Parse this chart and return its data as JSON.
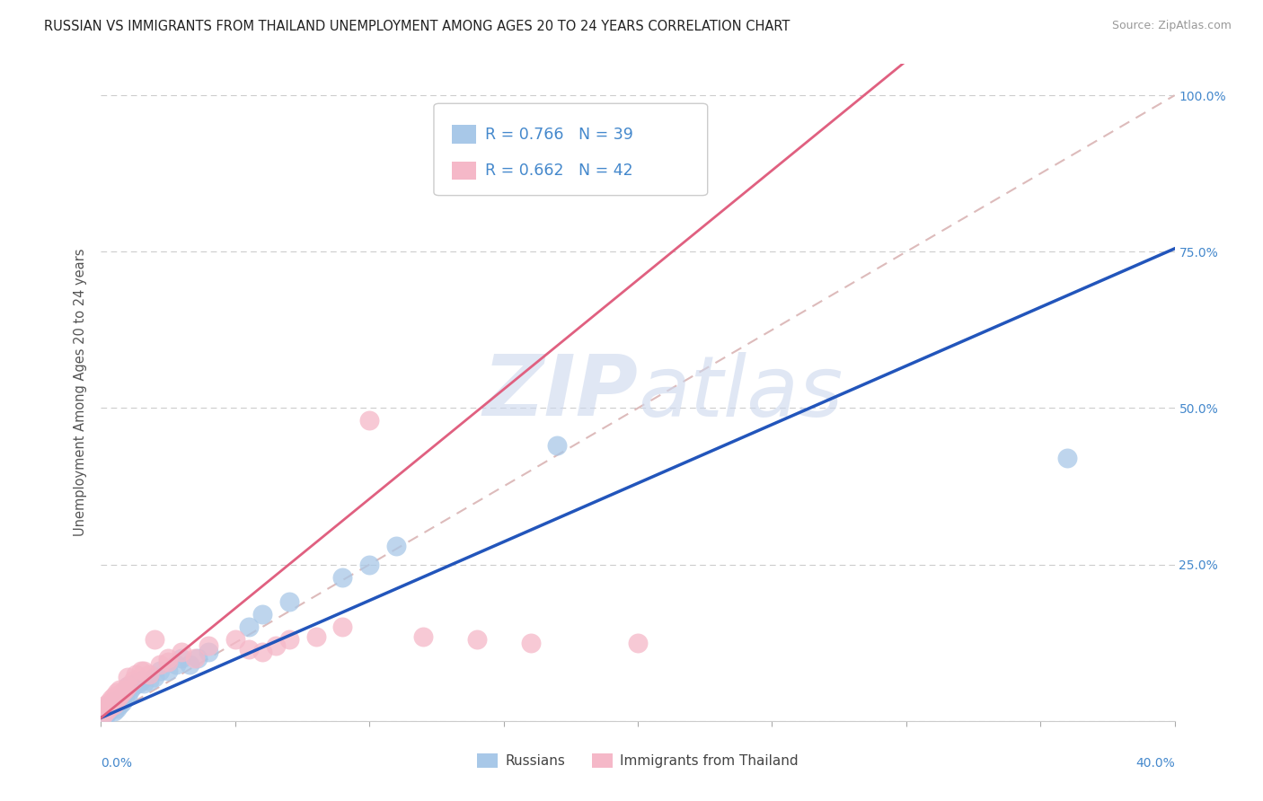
{
  "title": "RUSSIAN VS IMMIGRANTS FROM THAILAND UNEMPLOYMENT AMONG AGES 20 TO 24 YEARS CORRELATION CHART",
  "source": "Source: ZipAtlas.com",
  "ylabel": "Unemployment Among Ages 20 to 24 years",
  "xlim": [
    0.0,
    0.4
  ],
  "ylim": [
    0.0,
    1.05
  ],
  "russian_R": 0.766,
  "russian_N": 39,
  "thailand_R": 0.662,
  "thailand_N": 42,
  "russian_color": "#a8c8e8",
  "thailand_color": "#f5b8c8",
  "russian_line_color": "#2255bb",
  "thailand_line_color": "#e06080",
  "diag_line_color": "#ddbbbb",
  "watermark_color": "#ccd8ee",
  "background_color": "#ffffff",
  "ytick_color": "#4488cc",
  "russian_scatter_x": [
    0.001,
    0.002,
    0.003,
    0.003,
    0.004,
    0.004,
    0.005,
    0.005,
    0.006,
    0.006,
    0.007,
    0.008,
    0.008,
    0.009,
    0.01,
    0.01,
    0.011,
    0.012,
    0.013,
    0.014,
    0.015,
    0.016,
    0.018,
    0.02,
    0.022,
    0.025,
    0.028,
    0.03,
    0.033,
    0.036,
    0.04,
    0.055,
    0.06,
    0.07,
    0.09,
    0.1,
    0.11,
    0.17,
    0.36
  ],
  "russian_scatter_y": [
    0.005,
    0.01,
    0.015,
    0.025,
    0.02,
    0.03,
    0.015,
    0.025,
    0.02,
    0.03,
    0.025,
    0.03,
    0.04,
    0.035,
    0.04,
    0.055,
    0.05,
    0.055,
    0.06,
    0.06,
    0.065,
    0.06,
    0.065,
    0.07,
    0.08,
    0.08,
    0.09,
    0.1,
    0.09,
    0.1,
    0.11,
    0.15,
    0.17,
    0.19,
    0.23,
    0.25,
    0.28,
    0.44,
    0.42
  ],
  "thailand_scatter_x": [
    0.001,
    0.001,
    0.002,
    0.002,
    0.003,
    0.003,
    0.004,
    0.004,
    0.005,
    0.005,
    0.006,
    0.006,
    0.007,
    0.007,
    0.008,
    0.009,
    0.01,
    0.01,
    0.012,
    0.013,
    0.015,
    0.016,
    0.018,
    0.02,
    0.022,
    0.025,
    0.025,
    0.03,
    0.035,
    0.04,
    0.05,
    0.055,
    0.06,
    0.065,
    0.07,
    0.08,
    0.09,
    0.1,
    0.12,
    0.14,
    0.16,
    0.2
  ],
  "thailand_scatter_y": [
    0.01,
    0.02,
    0.015,
    0.025,
    0.02,
    0.03,
    0.025,
    0.035,
    0.025,
    0.04,
    0.035,
    0.045,
    0.04,
    0.05,
    0.045,
    0.05,
    0.055,
    0.07,
    0.065,
    0.075,
    0.08,
    0.08,
    0.075,
    0.13,
    0.09,
    0.095,
    0.1,
    0.11,
    0.1,
    0.12,
    0.13,
    0.115,
    0.11,
    0.12,
    0.13,
    0.135,
    0.15,
    0.48,
    0.135,
    0.13,
    0.125,
    0.125
  ],
  "title_fontsize": 10.5,
  "tick_fontsize": 10,
  "label_fontsize": 10.5
}
